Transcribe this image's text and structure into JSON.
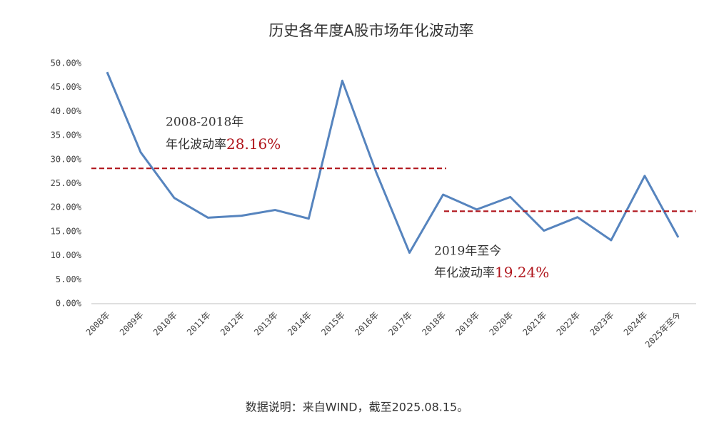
{
  "chart_data": {
    "type": "line",
    "title": "历史各年度A股市场年化波动率",
    "categories": [
      "2008年",
      "2009年",
      "2010年",
      "2011年",
      "2012年",
      "2013年",
      "2014年",
      "2015年",
      "2016年",
      "2017年",
      "2018年",
      "2019年",
      "2020年",
      "2021年",
      "2022年",
      "2023年",
      "2024年",
      "2025年至今"
    ],
    "series": [
      {
        "color": "#5684be",
        "values": [
          48.2,
          31.5,
          22.0,
          17.9,
          18.3,
          19.5,
          17.7,
          46.4,
          27.5,
          10.6,
          22.7,
          19.6,
          22.2,
          15.2,
          18.0,
          13.2,
          26.6,
          13.8
        ]
      }
    ],
    "ylim": [
      0,
      50
    ],
    "yticks": [
      {
        "value": 0,
        "label": "0.00%"
      },
      {
        "value": 5,
        "label": "5.00%"
      },
      {
        "value": 10,
        "label": "10.00%"
      },
      {
        "value": 15,
        "label": "15.00%"
      },
      {
        "value": 20,
        "label": "20.00%"
      },
      {
        "value": 25,
        "label": "25.00%"
      },
      {
        "value": 30,
        "label": "30.00%"
      },
      {
        "value": 35,
        "label": "35.00%"
      },
      {
        "value": 40,
        "label": "40.00%"
      },
      {
        "value": 45,
        "label": "45.00%"
      },
      {
        "value": 50,
        "label": "50.00%"
      }
    ],
    "reference_lines": [
      {
        "label": "2008-2018年",
        "text": "年化波动率",
        "value": 28.16,
        "value_label": "28.16%",
        "color": "#b0151c"
      },
      {
        "label": "2019年至今",
        "text": "年化波动率",
        "value": 19.24,
        "value_label": "19.24%",
        "color": "#b0151c"
      }
    ],
    "footnote": "数据说明：来自WIND，截至2025.08.15。"
  }
}
